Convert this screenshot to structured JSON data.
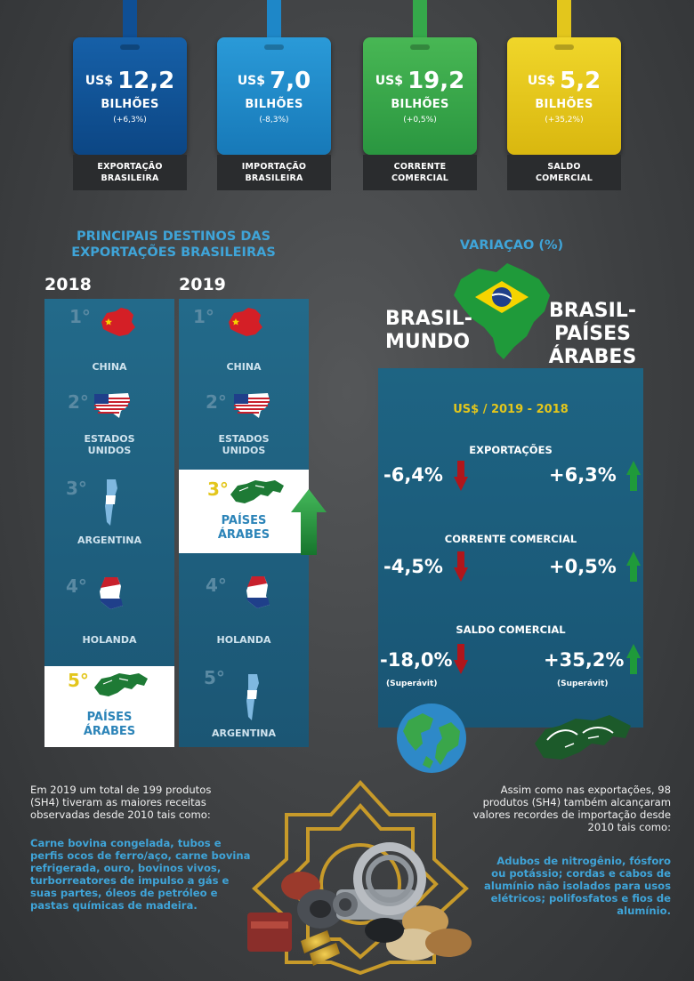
{
  "cards": [
    {
      "currency": "US$",
      "value": "12,2",
      "unit": "BILHÕES",
      "change": "(+6,3%)",
      "label_line1": "EXPORTAÇÃO",
      "label_line2": "BRASILEIRA",
      "color": "#0f4f94"
    },
    {
      "currency": "US$",
      "value": "7,0",
      "unit": "BILHÕES",
      "change": "(-8,3%)",
      "label_line1": "IMPORTAÇÃO",
      "label_line2": "BRASILEIRA",
      "color": "#1e87c8"
    },
    {
      "currency": "US$",
      "value": "19,2",
      "unit": "BILHÕES",
      "change": "(+0,5%)",
      "label_line1": "CORRENTE",
      "label_line2": "COMERCIAL",
      "color": "#35a84a"
    },
    {
      "currency": "US$",
      "value": "5,2",
      "unit": "BILHÕES",
      "change": "(+35,2%)",
      "label_line1": "SALDO",
      "label_line2": "COMERCIAL",
      "color": "#e3c61c"
    }
  ],
  "destinations": {
    "title_line1": "PRINCIPAIS DESTINOS DAS",
    "title_line2": "EXPORTAÇÕES BRASILEIRAS",
    "year_left": "2018",
    "year_right": "2019",
    "col_2018": [
      {
        "rank": "1°",
        "name_line1": "CHINA",
        "name_line2": ""
      },
      {
        "rank": "2°",
        "name_line1": "ESTADOS",
        "name_line2": "UNIDOS"
      },
      {
        "rank": "3°",
        "name_line1": "ARGENTINA",
        "name_line2": ""
      },
      {
        "rank": "4°",
        "name_line1": "HOLANDA",
        "name_line2": ""
      },
      {
        "rank": "5°",
        "name_line1": "PAÍSES",
        "name_line2": "ÁRABES"
      }
    ],
    "col_2019": [
      {
        "rank": "1°",
        "name_line1": "CHINA",
        "name_line2": ""
      },
      {
        "rank": "2°",
        "name_line1": "ESTADOS",
        "name_line2": "UNIDOS"
      },
      {
        "rank": "3°",
        "name_line1": "PAÍSES",
        "name_line2": "ÁRABES"
      },
      {
        "rank": "4°",
        "name_line1": "HOLANDA",
        "name_line2": ""
      },
      {
        "rank": "5°",
        "name_line1": "ARGENTINA",
        "name_line2": ""
      }
    ]
  },
  "variation": {
    "title": "VARIAÇAO (%)",
    "left_title_line1": "BRASIL-",
    "left_title_line2": "MUNDO",
    "right_title_line1": "BRASIL-",
    "right_title_line2": "PAÍSES",
    "right_title_line3": "ÁRABES",
    "period": "US$ / 2019 - 2018",
    "rows": [
      {
        "label": "EXPORTAÇÕES",
        "left": "-6,4%",
        "right": "+6,3%",
        "left_note": "",
        "right_note": ""
      },
      {
        "label": "CORRENTE COMERCIAL",
        "left": "-4,5%",
        "right": "+0,5%",
        "left_note": "",
        "right_note": ""
      },
      {
        "label": "SALDO COMERCIAL",
        "left": "-18,0%",
        "right": "+35,2%",
        "left_note": "(Superávit)",
        "right_note": "(Superávit)"
      }
    ]
  },
  "bottom": {
    "left_text": [
      "Em 2019 um total de 199 produtos",
      "(SH4) tiveram as maiores receitas",
      "observadas desde 2010 tais como:"
    ],
    "left_highlight": [
      "Carne bovina congelada, tubos e",
      "perfis ocos de ferro/aço, carne bovina",
      "refrigerada, ouro, bovinos vivos,",
      "turborreatores de impulso a gás e",
      "suas partes, óleos de petróleo e",
      "pastas químicas de madeira."
    ],
    "right_text": [
      "Assim como nas exportações, 98",
      "produtos (SH4) também alcançaram",
      "valores recordes de importação desde",
      "2010 tais como:"
    ],
    "right_highlight": [
      "Adubos de nitrogênio, fósforo",
      "ou potássio; cordas e cabos de",
      "alumínio não isolados para usos",
      "elétricos; polifosfatos e fios de",
      "alumínio."
    ]
  },
  "colors": {
    "accent_blue": "#3fa4d8",
    "up_green": "#1f9a3a",
    "down_red": "#b0161b",
    "gold": "#e3c61c"
  }
}
